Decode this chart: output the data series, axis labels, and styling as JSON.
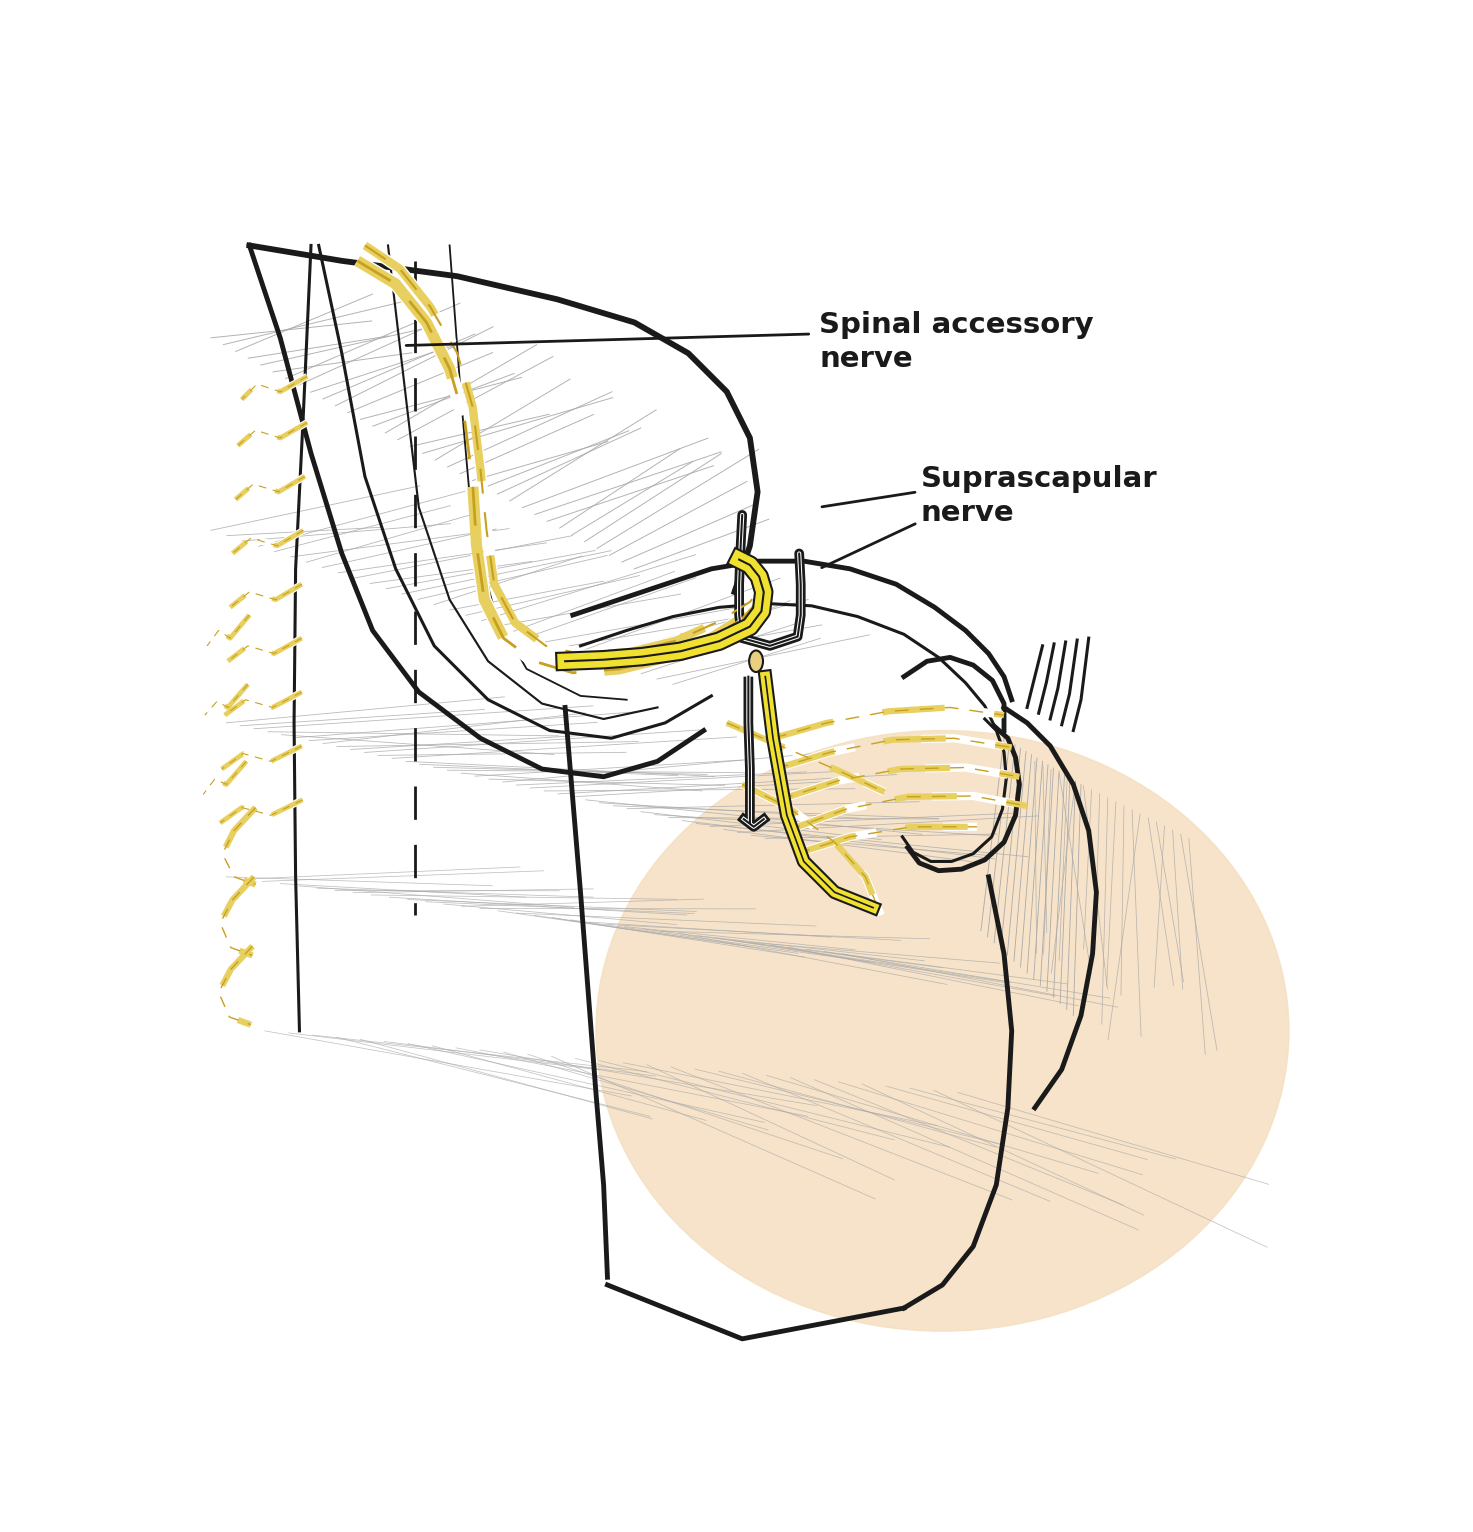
{
  "bg_color": "#FFFFFF",
  "peach_bg": "#F5DFC0",
  "outline_color": "#1a1a1a",
  "nerve_yellow_fill": "#E8D060",
  "nerve_yellow_border": "#C8A020",
  "nerve_dashed_fill": "#E8D060",
  "nerve_dashed_border": "#C8A020",
  "muscle_line_color": "#888888",
  "label_san": "Spinal accessory\nnerve",
  "label_ssn": "Suprascapular\nnerve",
  "font_size_label": 21,
  "lw_main": 2.2,
  "lw_thick": 3.5,
  "lw_thin": 1.0
}
